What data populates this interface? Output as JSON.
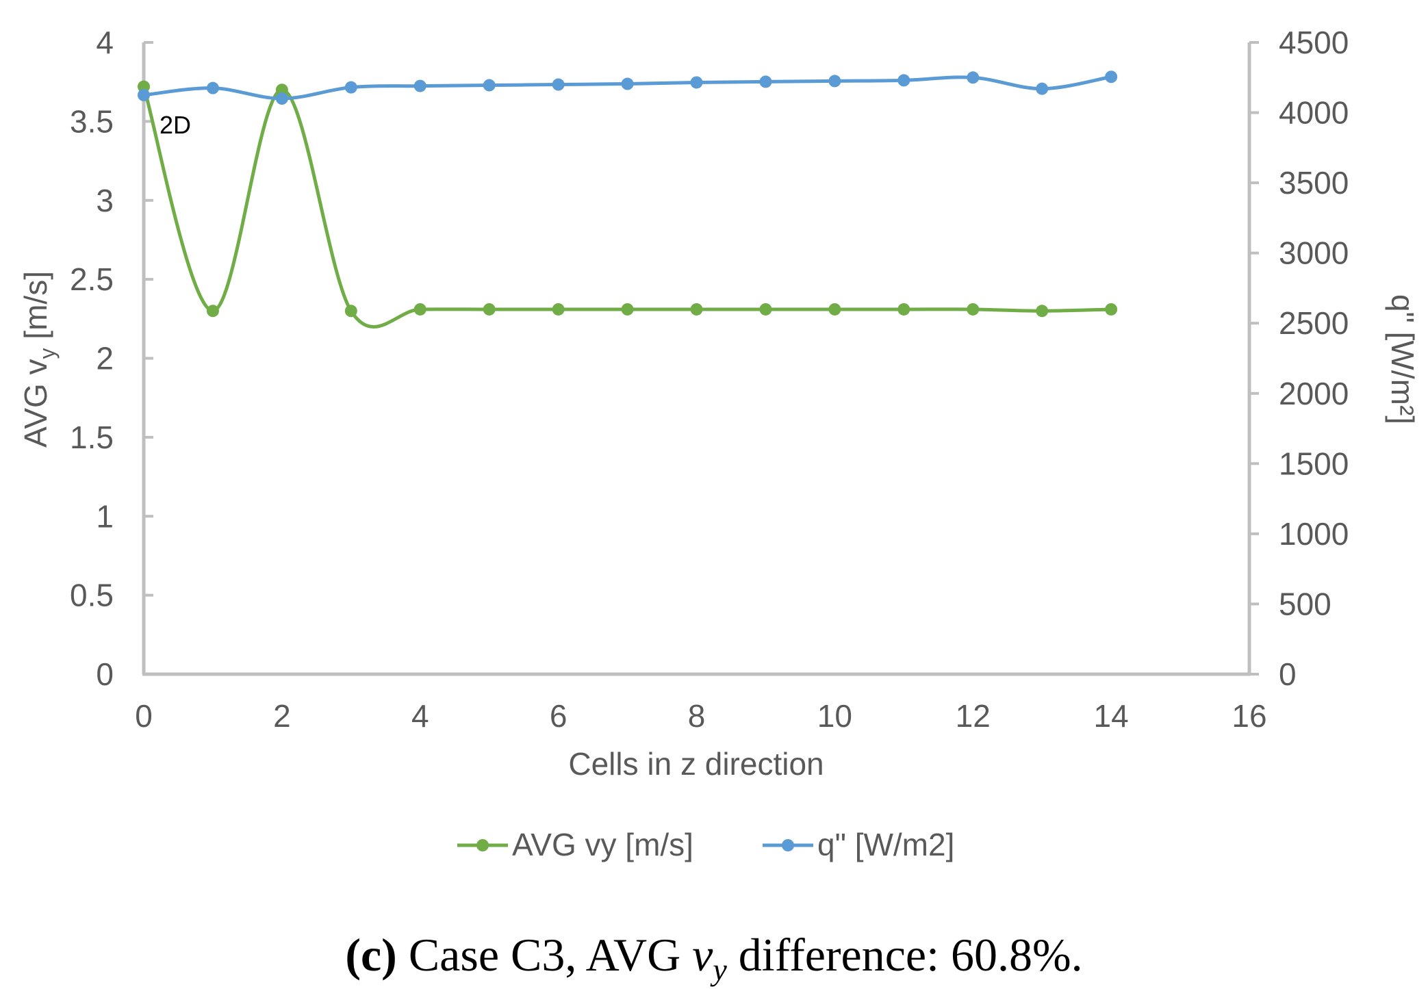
{
  "chart_data": {
    "type": "line",
    "title": "",
    "xlabel": "Cells in z direction",
    "ylabel_left": "AVG v",
    "ylabel_left_sub": "y",
    "ylabel_left_unit": " [m/s]",
    "ylabel_right": "q\" [W/m²]",
    "xlim": [
      0,
      16
    ],
    "ylim_left": [
      0,
      4
    ],
    "ylim_right": [
      0,
      4500
    ],
    "x_ticks": [
      "0",
      "2",
      "4",
      "6",
      "8",
      "10",
      "12",
      "14",
      "16"
    ],
    "y_left_ticks": [
      "0",
      "0.5",
      "1",
      "1.5",
      "2",
      "2.5",
      "3",
      "3.5",
      "4"
    ],
    "y_right_ticks": [
      "0",
      "500",
      "1000",
      "1500",
      "2000",
      "2500",
      "3000",
      "3500",
      "4000",
      "4500"
    ],
    "grid": false,
    "legend_position": "bottom",
    "series": [
      {
        "name": "AVG vy [m/s]",
        "axis": "left",
        "color": "#70AD47",
        "x": [
          0,
          1,
          2,
          3,
          4,
          5,
          6,
          7,
          8,
          9,
          10,
          11,
          12,
          13,
          14
        ],
        "values": [
          3.72,
          2.3,
          3.7,
          2.3,
          2.31,
          2.31,
          2.31,
          2.31,
          2.31,
          2.31,
          2.31,
          2.31,
          2.31,
          2.3,
          2.31
        ]
      },
      {
        "name": "q\" [W/m2]",
        "axis": "right",
        "color": "#5B9BD5",
        "x": [
          0,
          1,
          2,
          3,
          4,
          5,
          6,
          7,
          8,
          9,
          10,
          11,
          12,
          13,
          14
        ],
        "values": [
          4125,
          4175,
          4100,
          4180,
          4190,
          4195,
          4200,
          4205,
          4215,
          4220,
          4225,
          4230,
          4250,
          4170,
          4255
        ]
      }
    ],
    "annotations": [
      {
        "text": "2D",
        "x": 0,
        "series": "q\" [W/m2]"
      }
    ]
  },
  "caption": {
    "label": "(c)",
    "text_before": " Case C3, AVG ",
    "math_var": "v",
    "math_sub": "y",
    "text_after": " difference: 60.8%."
  },
  "colors": {
    "axis": "#BFBFBF",
    "text": "#595959",
    "green": "#70AD47",
    "blue": "#5B9BD5"
  }
}
